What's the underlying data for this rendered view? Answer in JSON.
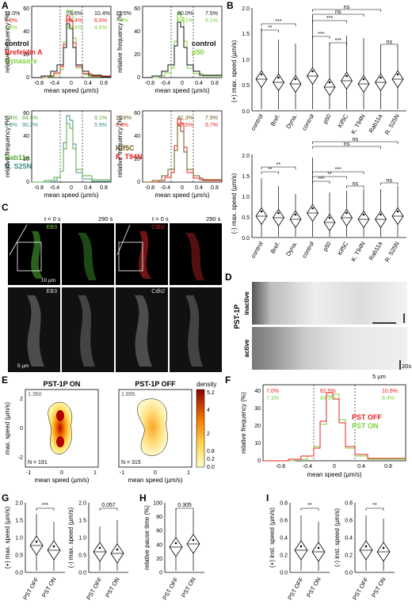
{
  "panel_letters": {
    "A": "A",
    "B": "B",
    "C": "C",
    "D": "D",
    "E": "E",
    "F": "F",
    "G": "G",
    "H": "H",
    "I": "I"
  },
  "colors": {
    "black": "#111111",
    "red": "#e8211d",
    "green": "#7ed23c",
    "teal": "#3f8f8a",
    "olive": "#6b5a1a",
    "darkred": "#8b1a1a",
    "eb3": "#5ab14a",
    "cdh2": "#d42a2a"
  },
  "panel_A": {
    "xlabel": "mean speed (µm/s)",
    "ylabel": "relative frequency (%)",
    "xticks": [
      "-0.8",
      "-0.4",
      "0",
      "0.4",
      "0.8"
    ],
    "yticks": [
      "0",
      "20",
      "40",
      "60"
    ],
    "plots": [
      {
        "legend": [
          {
            "text": "control",
            "color": "#111111"
          },
          {
            "text": "Brefeldin A",
            "color": "#e8211d"
          },
          {
            "text": "Dynasore",
            "color": "#7ed23c"
          }
        ],
        "pct_left": [
          "11.0%",
          "8.0%",
          "4.8%"
        ],
        "pct_mid": [
          "78.6%",
          "85.4%",
          "90.6%"
        ],
        "pct_right": [
          "10.4%",
          "6.6%",
          "4.6%"
        ],
        "pct_colors": [
          "#111111",
          "#e8211d",
          "#7ed23c"
        ]
      },
      {
        "legend": [
          {
            "text": "control",
            "color": "#111111"
          },
          {
            "text": "p50",
            "color": "#7ed23c"
          }
        ],
        "pct_left": [
          "12.5%",
          "7.8%"
        ],
        "pct_mid": [
          "80.0%",
          "84.1%"
        ],
        "pct_right": [
          "7.5%",
          "8.1%"
        ],
        "pct_colors": [
          "#111111",
          "#7ed23c"
        ]
      },
      {
        "legend": [
          {
            "text": "Rab11a",
            "color": "#5aa83c"
          },
          {
            "text": "R. S25N",
            "color": "#3f8f8a"
          }
        ],
        "pct_left": [
          "6.4%",
          "3.9%"
        ],
        "pct_mid": [
          "84.5%",
          "90.2%"
        ],
        "pct_right": [
          "9.1%",
          "5.9%"
        ],
        "pct_colors": [
          "#5aa83c",
          "#3f8f8a"
        ]
      },
      {
        "legend": [
          {
            "text": "Kif5C",
            "color": "#6b5a1a"
          },
          {
            "text": "K. T94N",
            "color": "#e8211d"
          }
        ],
        "pct_left": [
          "10.8%",
          "6.8%"
        ],
        "pct_mid": [
          "81.3%",
          "87.5%"
        ],
        "pct_right": [
          "7.9%",
          "5.7%"
        ],
        "pct_colors": [
          "#6b5a1a",
          "#e8211d"
        ]
      }
    ]
  },
  "panel_B": {
    "ylabel_top": "(+) max. speed (µm/s)",
    "ylabel_bottom": "(-) max. speed (µm/s)",
    "yticks": [
      "0.0",
      "0.5",
      "1.0",
      "1.5",
      "2.0"
    ],
    "categories": [
      "control",
      "Bref.",
      "Dyna.",
      "control",
      "p50",
      "Kif5C",
      "K. T94N",
      "Rab11a",
      "R. S25N"
    ],
    "sig_top": [
      "**",
      "***",
      "***",
      "ns",
      "***",
      "ns",
      "***",
      "ns",
      "ns"
    ],
    "sig_bottom": [
      "**",
      "**",
      "***",
      "ns",
      "**",
      "***",
      "ns",
      "ns",
      "ns"
    ]
  },
  "panel_C": {
    "t0": "t = 0 s",
    "t1": "290 s",
    "t2": "t = 0 s",
    "t3": "290 s",
    "ch1": "EB3",
    "ch2": "Cdh2",
    "scale1": "10 µm",
    "scale2": "5 µm"
  },
  "panel_D": {
    "label": "PST-1P",
    "inactive": "inactive",
    "active": "active",
    "scale_x": "5 µm",
    "scale_t": "20s"
  },
  "panel_E": {
    "title_on": "PST-1P ON",
    "title_off": "PST-1P OFF",
    "max_on": "1.360",
    "max_off": "1.895",
    "n_on": "N = 191",
    "n_off": "N = 315",
    "xlabel": "mean speed (µm/s)",
    "ylabel": "max. speed (µm/s)",
    "xticks": [
      "-1",
      "0",
      "1"
    ],
    "yticks": [
      "-2",
      "0",
      "2"
    ],
    "colorbar_title": "density",
    "colorbar_ticks": [
      "5.2",
      "4",
      "2",
      "0.8",
      "0.2",
      "0.0"
    ]
  },
  "panel_F": {
    "xlabel": "mean speed (µm/s)",
    "ylabel": "relative frequency (%)",
    "xticks": [
      "-0.8",
      "-0.4",
      "0",
      "0.4",
      "0.8"
    ],
    "yticks": [
      "0",
      "10",
      "20",
      "30",
      "40"
    ],
    "pct_left": [
      "7.0%",
      "7.3%"
    ],
    "pct_mid": [
      "82.5%",
      "84.3%"
    ],
    "pct_right": [
      "10.5%",
      "8.4%"
    ],
    "legend": [
      "PST OFF",
      "PST ON"
    ]
  },
  "panel_G": {
    "ylabel_1": "(+) max. speed (µm/s)",
    "ylabel_2": "(-) max. speed (µm/s)",
    "sig_1": "***",
    "sig_2": "0.057",
    "yticks": [
      "0.0",
      "0.5",
      "1.0",
      "1.5",
      "2.0"
    ],
    "categories": [
      "PST OFF",
      "PST ON"
    ]
  },
  "panel_H": {
    "ylabel": "relative pause time (%)",
    "sig": "0.305",
    "yticks": [
      "0",
      "20",
      "40",
      "60",
      "80",
      "100"
    ],
    "categories": [
      "PST OFF",
      "PST ON"
    ]
  },
  "panel_I": {
    "ylabel_1": "(+) inst. speed (µm/s)",
    "ylabel_2": "(-) inst. speed (µm/s)",
    "sig_1": "**",
    "sig_2": "**",
    "yticks": [
      "0.0",
      "0.2",
      "0.4",
      "0.6",
      "0.8"
    ],
    "categories": [
      "PST OFF",
      "PST ON"
    ]
  }
}
